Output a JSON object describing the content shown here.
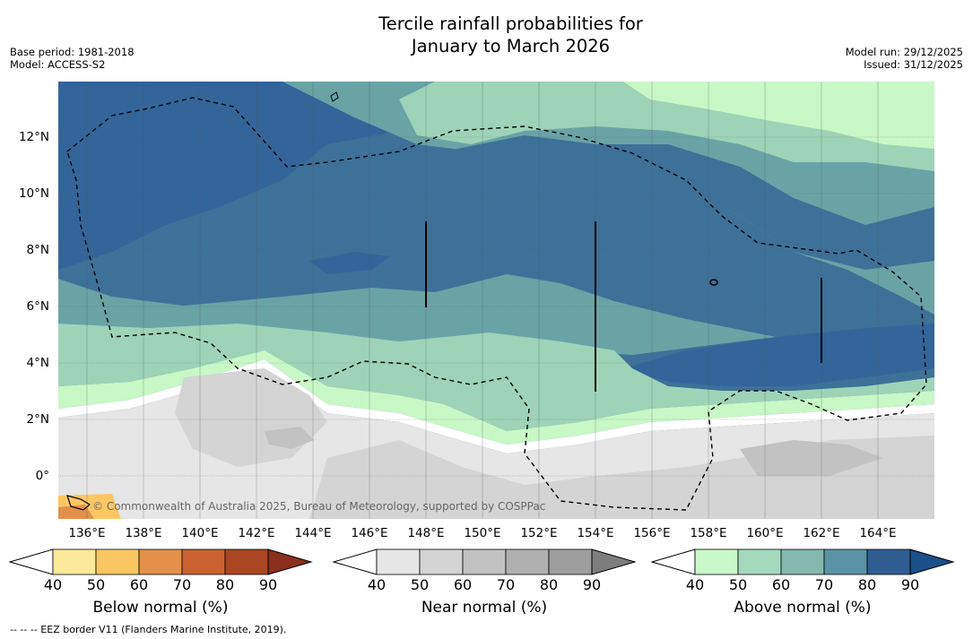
{
  "title": {
    "line1": "Tercile rainfall probabilities for",
    "line2": "January to March 2026"
  },
  "meta_left": {
    "base_period": "Base period: 1981-2018",
    "model": "Model: ACCESS-S2"
  },
  "meta_right": {
    "model_run": "Model run: 29/12/2025",
    "issued": "Issued: 31/12/2025"
  },
  "map": {
    "lon_labels": [
      "136°E",
      "138°E",
      "140°E",
      "142°E",
      "144°E",
      "146°E",
      "148°E",
      "150°E",
      "152°E",
      "154°E",
      "156°E",
      "158°E",
      "160°E",
      "162°E",
      "164°E"
    ],
    "lat_labels": [
      "12°N",
      "10°N",
      "8°N",
      "6°N",
      "4°N",
      "2°N",
      "0°"
    ],
    "lon_values": [
      136,
      138,
      140,
      142,
      144,
      146,
      148,
      150,
      152,
      154,
      156,
      158,
      160,
      162,
      164
    ],
    "lat_values": [
      12,
      10,
      8,
      6,
      4,
      2,
      0
    ],
    "lon_range": [
      134.9,
      165.9
    ],
    "lat_range": [
      -1.5,
      13.9
    ],
    "copyright": "© Commonwealth of Australia 2025, Bureau of Meteorology, supported by COSPPac"
  },
  "colorbars": [
    {
      "label": "Below normal (%)",
      "ticks": [
        "40",
        "50",
        "60",
        "70",
        "80",
        "90"
      ],
      "colors": [
        "#ffffff",
        "#fee99a",
        "#fcc762",
        "#e3914a",
        "#cb6130",
        "#aa4622",
        "#8a2f1e"
      ]
    },
    {
      "label": "Near normal (%)",
      "ticks": [
        "40",
        "50",
        "60",
        "70",
        "80",
        "90"
      ],
      "colors": [
        "#ffffff",
        "#e6e6e6",
        "#d4d4d4",
        "#c2c2c2",
        "#b0b0b0",
        "#9e9e9e",
        "#7d7d7d"
      ]
    },
    {
      "label": "Above normal (%)",
      "ticks": [
        "40",
        "50",
        "60",
        "70",
        "80",
        "90"
      ],
      "colors": [
        "#ffffff",
        "#c9f8c9",
        "#a5d9bd",
        "#85b8ae",
        "#5a93a6",
        "#315e92",
        "#1a4f8a"
      ]
    }
  ],
  "footnote": "--  --  -- EEZ border V11 (Flanders Marine Institute, 2019)."
}
